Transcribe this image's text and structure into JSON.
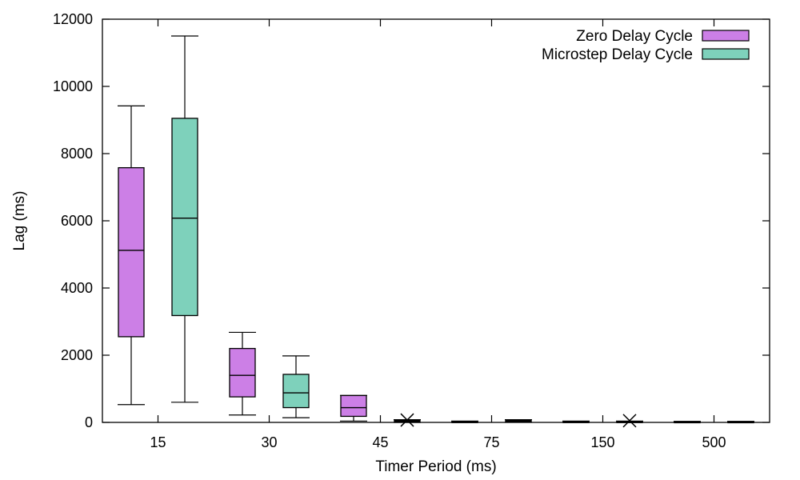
{
  "chart_data": {
    "type": "boxplot",
    "xlabel": "Timer Period (ms)",
    "ylabel": "Lag (ms)",
    "ylim": [
      0,
      12000
    ],
    "yticks": [
      0,
      2000,
      4000,
      6000,
      8000,
      10000,
      12000
    ],
    "categories": [
      "15",
      "30",
      "45",
      "75",
      "150",
      "500"
    ],
    "grid": false,
    "legend_position": "top-right",
    "colors": {
      "Zero Delay Cycle": "#cc7fe6",
      "Microstep Delay Cycle": "#7ed1bb"
    },
    "series": [
      {
        "name": "Zero Delay Cycle",
        "boxes": [
          {
            "category": "15",
            "min": 530,
            "q1": 2550,
            "median": 5120,
            "q3": 7580,
            "max": 9420
          },
          {
            "category": "30",
            "min": 220,
            "q1": 760,
            "median": 1400,
            "q3": 2200,
            "max": 2680
          },
          {
            "category": "45",
            "min": 40,
            "q1": 180,
            "median": 440,
            "q3": 800,
            "max": 800
          },
          {
            "category": "75",
            "min": 0,
            "q1": 10,
            "median": 20,
            "q3": 30,
            "max": 40
          },
          {
            "category": "150",
            "min": 0,
            "q1": 10,
            "median": 20,
            "q3": 30,
            "max": 40
          },
          {
            "category": "500",
            "min": 0,
            "q1": 10,
            "median": 15,
            "q3": 25,
            "max": 30
          }
        ]
      },
      {
        "name": "Microstep Delay Cycle",
        "boxes": [
          {
            "category": "15",
            "min": 600,
            "q1": 3180,
            "median": 6080,
            "q3": 9050,
            "max": 11500
          },
          {
            "category": "30",
            "min": 140,
            "q1": 440,
            "median": 880,
            "q3": 1430,
            "max": 1980
          },
          {
            "category": "45",
            "min": 0,
            "q1": 20,
            "median": 40,
            "q3": 60,
            "max": 80
          },
          {
            "category": "75",
            "min": 10,
            "q1": 30,
            "median": 50,
            "q3": 70,
            "max": 80
          },
          {
            "category": "150",
            "min": 0,
            "q1": 10,
            "median": 20,
            "q3": 30,
            "max": 40
          },
          {
            "category": "500",
            "min": 0,
            "q1": 10,
            "median": 15,
            "q3": 25,
            "max": 30
          }
        ]
      }
    ],
    "outliers": [
      {
        "series": "Microstep Delay Cycle",
        "category": "45",
        "value": 70
      },
      {
        "series": "Microstep Delay Cycle",
        "category": "150",
        "value": 50
      }
    ]
  }
}
